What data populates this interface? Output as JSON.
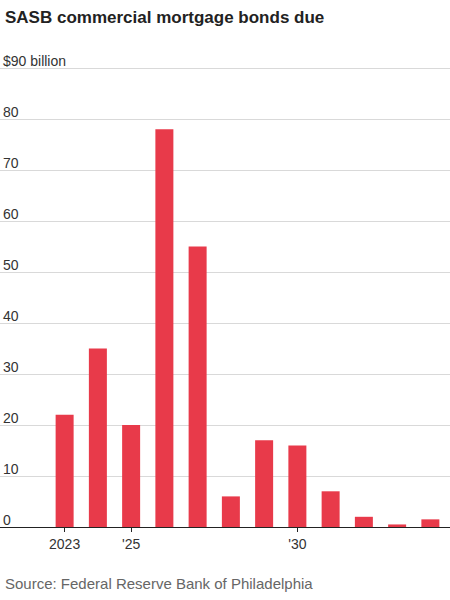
{
  "chart_data": {
    "type": "bar",
    "title": "SASB commercial mortgage bonds due",
    "source": "Source: Federal Reserve Bank of Philadelphia",
    "categories": [
      "2023",
      null,
      "'25",
      null,
      null,
      null,
      null,
      "'30",
      null,
      null,
      null,
      null
    ],
    "values": [
      22,
      35,
      20,
      78,
      55,
      6,
      17,
      16,
      7,
      2,
      0.5,
      1.5
    ],
    "color": "#e83a4a",
    "ylim": [
      0,
      90
    ],
    "yticks": [
      0,
      10,
      20,
      30,
      40,
      50,
      60,
      70,
      80,
      {
        "value": 90,
        "label": "$90 billion"
      }
    ],
    "grid": true
  }
}
